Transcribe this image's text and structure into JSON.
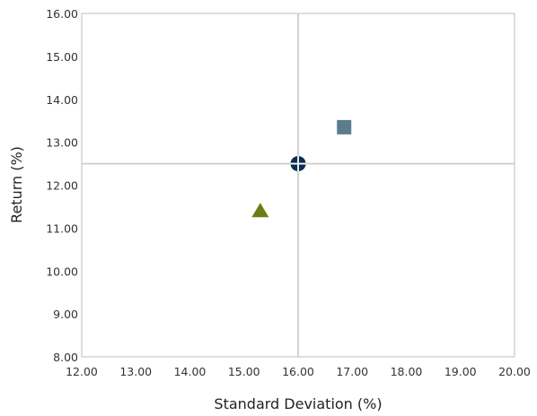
{
  "chart_data": {
    "type": "scatter",
    "title": "",
    "xlabel": "Standard Deviation (%)",
    "ylabel": "Return (%)",
    "xlim": [
      12,
      20
    ],
    "ylim": [
      8,
      16
    ],
    "x_ticks": [
      "12.00",
      "13.00",
      "14.00",
      "15.00",
      "16.00",
      "17.00",
      "18.00",
      "19.00",
      "20.00"
    ],
    "y_ticks": [
      "8.00",
      "9.00",
      "10.00",
      "11.00",
      "12.00",
      "13.00",
      "14.00",
      "15.00",
      "16.00"
    ],
    "grid": false,
    "reference_lines": {
      "x": 16.0,
      "y": 12.5
    },
    "series": [
      {
        "marker": "circle-cross",
        "color": "#0b2d4f",
        "points": [
          {
            "x": 16.0,
            "y": 12.5
          }
        ]
      },
      {
        "marker": "square",
        "color": "#5b7c8e",
        "points": [
          {
            "x": 16.85,
            "y": 13.35
          }
        ]
      },
      {
        "marker": "triangle",
        "color": "#6b7d12",
        "points": [
          {
            "x": 15.3,
            "y": 11.4
          }
        ]
      }
    ]
  }
}
